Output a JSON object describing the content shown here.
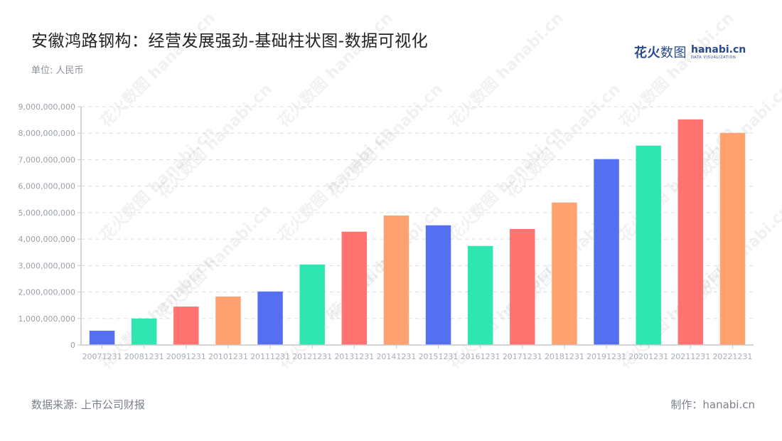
{
  "header": {
    "title": "安徽鸿路钢构：经营发展强劲-基础柱状图-数据可视化",
    "unit": "单位: 人民币"
  },
  "logo": {
    "cn_bold": "花火",
    "cn_light": "数图",
    "en_main": "hanabi.cn",
    "en_sub": "DATA VISUALIZATION"
  },
  "footer": {
    "source": "数据来源: 上市公司财报",
    "maker": "制作：hanabi.cn"
  },
  "watermark": "花火数图 hanabi.cn",
  "colors": [
    "#5470f0",
    "#2de6b0",
    "#ff7470",
    "#ffa270"
  ],
  "chart_data": {
    "type": "bar",
    "title": "安徽鸿路钢构：经营发展强劲-基础柱状图-数据可视化",
    "xlabel": "",
    "ylabel": "单位: 人民币",
    "ylim": [
      0,
      9000000000
    ],
    "grid": true,
    "legend": "none",
    "yticks": [
      0,
      1000000000,
      2000000000,
      3000000000,
      4000000000,
      5000000000,
      6000000000,
      7000000000,
      8000000000,
      9000000000
    ],
    "ytick_labels": [
      "0",
      "1,000,000,000",
      "2,000,000,000",
      "3,000,000,000",
      "4,000,000,000",
      "5,000,000,000",
      "6,000,000,000",
      "7,000,000,000",
      "8,000,000,000",
      "9,000,000,000"
    ],
    "categories": [
      "20071231",
      "20081231",
      "20091231",
      "20101231",
      "20111231",
      "20121231",
      "20131231",
      "20141231",
      "20151231",
      "20161231",
      "20171231",
      "20181231",
      "20191231",
      "20201231",
      "20211231",
      "20221231"
    ],
    "values": [
      540000000,
      1000000000,
      1450000000,
      1830000000,
      2020000000,
      3040000000,
      4280000000,
      4890000000,
      4520000000,
      3740000000,
      4380000000,
      5380000000,
      7020000000,
      7530000000,
      8520000000,
      8010000000
    ]
  }
}
